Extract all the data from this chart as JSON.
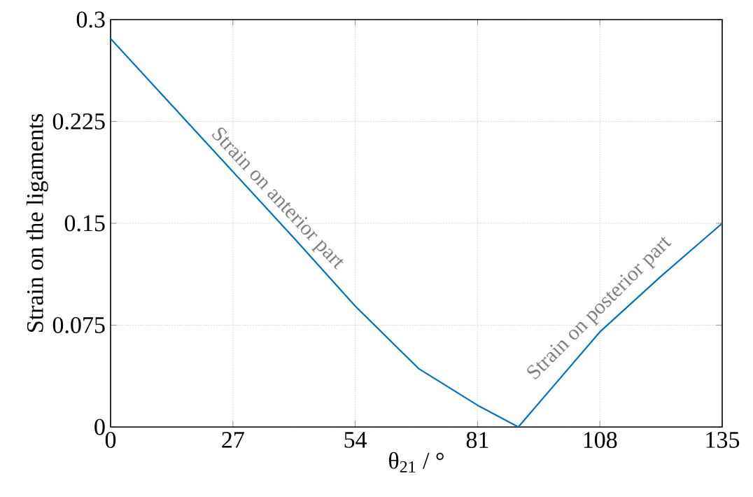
{
  "chart_data": {
    "type": "line",
    "xlabel": "θ$_{21}$ / °",
    "ylabel": "Strain on the ligaments",
    "x": [
      0,
      13.5,
      27,
      40.5,
      54,
      68,
      81,
      90,
      108,
      121.5,
      135
    ],
    "series": [
      {
        "color": "#0072bd",
        "values": [
          0.286,
          0.237,
          0.188,
          0.139,
          0.089,
          0.043,
          0.016,
          0,
          0.07,
          0.111,
          0.15
        ]
      }
    ],
    "xlim": [
      0,
      135
    ],
    "ylim": [
      0,
      0.3
    ],
    "xticks": [
      0,
      27,
      54,
      81,
      108,
      135
    ],
    "yticks": [
      0,
      0.075,
      0.15,
      0.225,
      0.3
    ],
    "grid": true,
    "line_style": "solid",
    "marker": "none",
    "annotations": [
      "Strain on anterior part",
      "Strain on posterior part"
    ]
  }
}
